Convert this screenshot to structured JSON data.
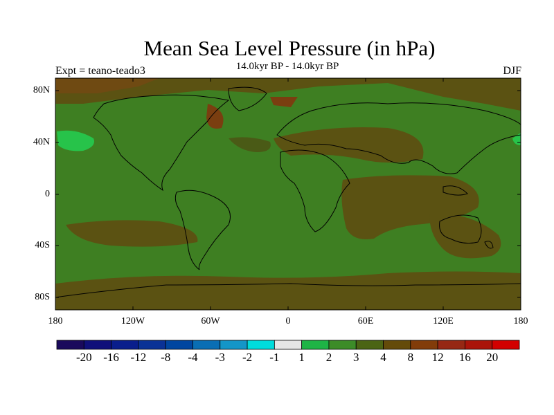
{
  "header": {
    "title": "Mean Sea Level Pressure (in hPa)",
    "subtitle": "14.0kyr BP - 14.0kyr BP",
    "left_label": "Expt = teano-teado3",
    "right_label": "DJF"
  },
  "axes": {
    "lat_labels": [
      "80N",
      "40N",
      "0",
      "40S",
      "80S"
    ],
    "lon_labels": [
      "180",
      "120W",
      "60W",
      "0",
      "60E",
      "120E",
      "180"
    ]
  },
  "colorbar": {
    "labels": [
      "-20",
      "-16",
      "-12",
      "-8",
      "-4",
      "-3",
      "-2",
      "-1",
      "1",
      "2",
      "3",
      "4",
      "8",
      "12",
      "16",
      "20"
    ],
    "colors": [
      "#1a0a5c",
      "#10107a",
      "#0a1e8c",
      "#0a3296",
      "#0046a0",
      "#0a6eb4",
      "#1496c8",
      "#00dcdc",
      "#e6e6e6",
      "#1eb446",
      "#3c8c28",
      "#4b6414",
      "#644b0a",
      "#823c0a",
      "#962814",
      "#aa140a",
      "#d20000"
    ]
  },
  "map": {
    "base_color": "#3e7f22",
    "highlight_color": "#27c34a",
    "dark_color": "#5b5212",
    "brown_color": "#6f4a12"
  }
}
